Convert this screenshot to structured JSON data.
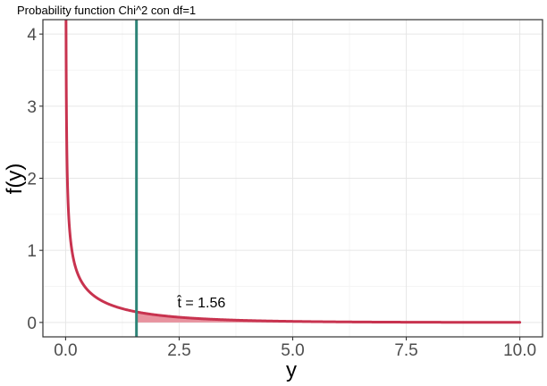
{
  "chart_data": {
    "type": "line",
    "title": "Probability function Chi^2 con df=1",
    "xlabel": "y",
    "ylabel": "f(y)",
    "xlim": [
      -0.5,
      10.5
    ],
    "ylim": [
      -0.2,
      4.2
    ],
    "x_ticks": [
      0.0,
      2.5,
      5.0,
      7.5,
      10.0
    ],
    "x_tick_labels": [
      "0.0",
      "2.5",
      "5.0",
      "7.5",
      "10.0"
    ],
    "y_ticks": [
      0,
      1,
      2,
      3,
      4
    ],
    "y_tick_labels": [
      "0",
      "1",
      "2",
      "3",
      "4"
    ],
    "grid": true,
    "series": [
      {
        "distribution": "chi-squared",
        "df": 1,
        "x_range": [
          0,
          10
        ],
        "color": "#c8334f"
      }
    ],
    "vline": {
      "x": 1.56,
      "color": "#2e8478"
    },
    "shaded_region": {
      "from": 1.56,
      "to": 10,
      "color": "#e8939f"
    },
    "annotation": {
      "text": "t̂ = 1.56",
      "x": 2.5,
      "y": 0.27
    }
  }
}
